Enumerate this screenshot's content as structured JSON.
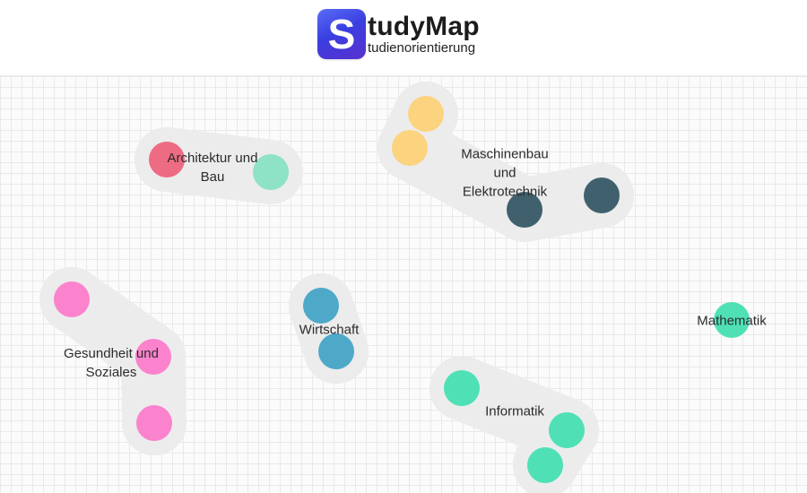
{
  "header": {
    "logo_letter": "S",
    "logo_title": "tudyMap",
    "logo_subtitle": "tudienorientierung"
  },
  "clusters": [
    {
      "id": "architektur",
      "label_lines": [
        "Architektur und",
        "Bau"
      ],
      "colors": [
        "#ee6b84",
        "#8ee2c6"
      ]
    },
    {
      "id": "maschinenbau",
      "label_lines": [
        "Maschinenbau",
        "und",
        "Elektrotechnik"
      ],
      "colors": [
        "#fcd37f",
        "#fcd37f",
        "#41606e",
        "#41606e"
      ]
    },
    {
      "id": "gesundheit",
      "label_lines": [
        "Gesundheit und",
        "Soziales"
      ],
      "colors": [
        "#fb83cd",
        "#fb83cd",
        "#fb83cd"
      ]
    },
    {
      "id": "wirtschaft",
      "label_lines": [
        "Wirtschaft"
      ],
      "colors": [
        "#4ea9c9",
        "#4ea9c9"
      ]
    },
    {
      "id": "informatik",
      "label_lines": [
        "Informatik"
      ],
      "colors": [
        "#4fe0b6",
        "#4fe0b6",
        "#4fe0b6"
      ]
    },
    {
      "id": "mathematik",
      "label_lines": [
        "Mathematik"
      ],
      "colors": [
        "#4fe0b6"
      ]
    }
  ]
}
